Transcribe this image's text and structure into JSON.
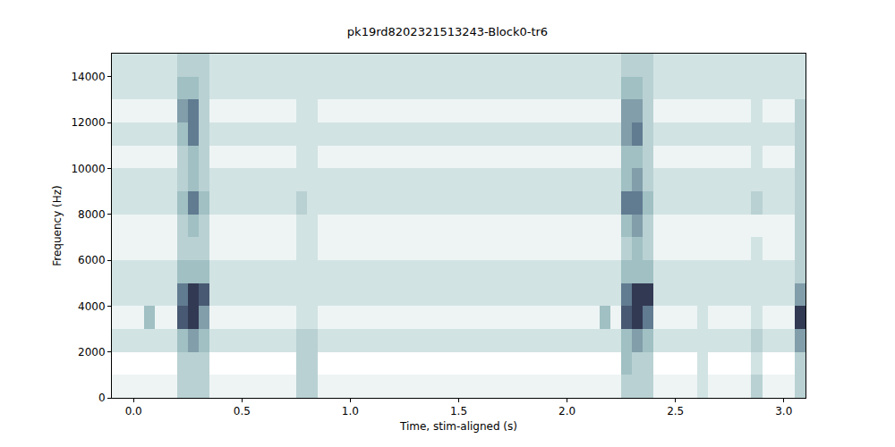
{
  "chart_data": {
    "type": "heatmap",
    "title": "pk19rd8202321513243-Block0-tr6",
    "x_label": "Time, stim-aligned (s)",
    "y_label": "Frequency (Hz)",
    "xlim": [
      -0.1,
      3.1
    ],
    "ylim": [
      0,
      15000
    ],
    "xticks": [
      {
        "value": 0,
        "label": "0.0"
      },
      {
        "value": 0.5,
        "label": "0.5"
      },
      {
        "value": 1,
        "label": "1.0"
      },
      {
        "value": 1.5,
        "label": "1.5"
      },
      {
        "value": 2,
        "label": "2.0"
      },
      {
        "value": 2.5,
        "label": "2.5"
      },
      {
        "value": 3,
        "label": "3.0"
      }
    ],
    "yticks": [
      0,
      2000,
      4000,
      6000,
      8000,
      10000,
      12000,
      14000
    ],
    "grid": false,
    "zlim": [
      0,
      9
    ],
    "x": [
      -0.075,
      -0.025,
      0.025,
      0.075,
      0.125,
      0.175,
      0.225,
      0.275,
      0.325,
      0.375,
      0.425,
      0.475,
      0.525,
      0.575,
      0.625,
      0.675,
      0.725,
      0.775,
      0.825,
      0.875,
      0.925,
      0.975,
      1.025,
      1.075,
      1.125,
      1.175,
      1.225,
      1.275,
      1.325,
      1.375,
      1.425,
      1.475,
      1.525,
      1.575,
      1.625,
      1.675,
      1.725,
      1.775,
      1.825,
      1.875,
      1.925,
      1.975,
      2.025,
      2.075,
      2.125,
      2.175,
      2.225,
      2.275,
      2.325,
      2.375,
      2.425,
      2.475,
      2.525,
      2.575,
      2.625,
      2.675,
      2.725,
      2.775,
      2.825,
      2.875,
      2.925,
      2.975,
      3.025,
      3.075
    ],
    "y": [
      500,
      1500,
      2500,
      3500,
      4500,
      5500,
      6500,
      7500,
      8500,
      9500,
      10500,
      11500,
      12500,
      13500,
      14500
    ],
    "z": [
      [
        1,
        1,
        1,
        1,
        1,
        1,
        3,
        3,
        3,
        1,
        1,
        1,
        1,
        1,
        1,
        1,
        1,
        3,
        3,
        1,
        1,
        1,
        1,
        1,
        1,
        1,
        1,
        1,
        1,
        1,
        1,
        1,
        1,
        1,
        1,
        1,
        1,
        1,
        1,
        1,
        1,
        1,
        1,
        1,
        1,
        1,
        1,
        3,
        3,
        3,
        1,
        1,
        1,
        1,
        2,
        1,
        1,
        1,
        1,
        3,
        1,
        1,
        1,
        3
      ],
      [
        0,
        0,
        0,
        0,
        0,
        0,
        3,
        3,
        3,
        0,
        0,
        0,
        0,
        0,
        0,
        0,
        0,
        3,
        3,
        0,
        0,
        0,
        0,
        0,
        0,
        0,
        0,
        0,
        0,
        0,
        0,
        0,
        0,
        0,
        0,
        0,
        0,
        0,
        0,
        0,
        0,
        0,
        0,
        0,
        0,
        0,
        0,
        4,
        3,
        3,
        0,
        0,
        0,
        0,
        2,
        0,
        0,
        0,
        0,
        2,
        0,
        0,
        0,
        3
      ],
      [
        2,
        2,
        2,
        2,
        2,
        2,
        4,
        5,
        4,
        2,
        2,
        2,
        2,
        2,
        2,
        2,
        2,
        3,
        3,
        2,
        2,
        2,
        2,
        2,
        2,
        2,
        2,
        2,
        2,
        2,
        2,
        2,
        2,
        2,
        2,
        2,
        2,
        2,
        2,
        2,
        2,
        2,
        2,
        2,
        2,
        2,
        2,
        4,
        5,
        4,
        2,
        2,
        2,
        2,
        2,
        2,
        2,
        2,
        2,
        3,
        2,
        2,
        2,
        5
      ],
      [
        1,
        1,
        1,
        4,
        1,
        1,
        7,
        8,
        5,
        1,
        1,
        1,
        1,
        1,
        1,
        1,
        1,
        2,
        2,
        1,
        1,
        1,
        1,
        1,
        1,
        1,
        1,
        1,
        1,
        1,
        1,
        1,
        1,
        1,
        1,
        1,
        1,
        1,
        1,
        1,
        1,
        1,
        1,
        1,
        1,
        4,
        1,
        7,
        8,
        6,
        1,
        1,
        1,
        1,
        2,
        1,
        1,
        1,
        1,
        2,
        1,
        1,
        1,
        8
      ],
      [
        2,
        2,
        2,
        2,
        2,
        2,
        6,
        8,
        7,
        2,
        2,
        2,
        2,
        2,
        2,
        2,
        2,
        2,
        2,
        2,
        2,
        2,
        2,
        2,
        2,
        2,
        2,
        2,
        2,
        2,
        2,
        2,
        2,
        2,
        2,
        2,
        2,
        2,
        2,
        2,
        2,
        2,
        2,
        2,
        2,
        2,
        2,
        6,
        8,
        8,
        2,
        2,
        2,
        2,
        2,
        2,
        2,
        2,
        2,
        2,
        2,
        2,
        2,
        5
      ],
      [
        2,
        2,
        2,
        2,
        2,
        2,
        4,
        4,
        4,
        2,
        2,
        2,
        2,
        2,
        2,
        2,
        2,
        2,
        2,
        2,
        2,
        2,
        2,
        2,
        2,
        2,
        2,
        2,
        2,
        2,
        2,
        2,
        2,
        2,
        2,
        2,
        2,
        2,
        2,
        2,
        2,
        2,
        2,
        2,
        2,
        2,
        2,
        4,
        4,
        4,
        2,
        2,
        2,
        2,
        2,
        2,
        2,
        2,
        2,
        2,
        2,
        2,
        2,
        3
      ],
      [
        1,
        1,
        1,
        1,
        1,
        1,
        3,
        3,
        3,
        1,
        1,
        1,
        1,
        1,
        1,
        1,
        1,
        2,
        2,
        1,
        1,
        1,
        1,
        1,
        1,
        1,
        1,
        1,
        1,
        1,
        1,
        1,
        1,
        1,
        1,
        1,
        1,
        1,
        1,
        1,
        1,
        1,
        1,
        1,
        1,
        1,
        1,
        3,
        4,
        3,
        1,
        1,
        1,
        1,
        1,
        1,
        1,
        1,
        1,
        2,
        1,
        1,
        1,
        3
      ],
      [
        1,
        1,
        1,
        1,
        1,
        1,
        3,
        4,
        3,
        1,
        1,
        1,
        1,
        1,
        1,
        1,
        1,
        2,
        2,
        1,
        1,
        1,
        1,
        1,
        1,
        1,
        1,
        1,
        1,
        1,
        1,
        1,
        1,
        1,
        1,
        1,
        1,
        1,
        1,
        1,
        1,
        1,
        1,
        1,
        1,
        1,
        1,
        4,
        5,
        3,
        1,
        1,
        1,
        1,
        1,
        1,
        1,
        1,
        1,
        1,
        1,
        1,
        1,
        3
      ],
      [
        2,
        2,
        2,
        2,
        2,
        2,
        4,
        6,
        4,
        2,
        2,
        2,
        2,
        2,
        2,
        2,
        2,
        3,
        2,
        2,
        2,
        2,
        2,
        2,
        2,
        2,
        2,
        2,
        2,
        2,
        2,
        2,
        2,
        2,
        2,
        2,
        2,
        2,
        2,
        2,
        2,
        2,
        2,
        2,
        2,
        2,
        2,
        6,
        6,
        4,
        2,
        2,
        2,
        2,
        2,
        2,
        2,
        2,
        2,
        3,
        2,
        2,
        2,
        3
      ],
      [
        2,
        2,
        2,
        2,
        2,
        2,
        3,
        4,
        3,
        2,
        2,
        2,
        2,
        2,
        2,
        2,
        2,
        2,
        2,
        2,
        2,
        2,
        2,
        2,
        2,
        2,
        2,
        2,
        2,
        2,
        2,
        2,
        2,
        2,
        2,
        2,
        2,
        2,
        2,
        2,
        2,
        2,
        2,
        2,
        2,
        2,
        2,
        4,
        5,
        3,
        2,
        2,
        2,
        2,
        2,
        2,
        2,
        2,
        2,
        2,
        2,
        2,
        2,
        3
      ],
      [
        1,
        1,
        1,
        1,
        1,
        1,
        3,
        4,
        3,
        1,
        1,
        1,
        1,
        1,
        1,
        1,
        1,
        2,
        2,
        1,
        1,
        1,
        1,
        1,
        1,
        1,
        1,
        1,
        1,
        1,
        1,
        1,
        1,
        1,
        1,
        1,
        1,
        1,
        1,
        1,
        1,
        1,
        1,
        1,
        1,
        1,
        1,
        4,
        4,
        3,
        1,
        1,
        1,
        1,
        1,
        1,
        1,
        1,
        1,
        2,
        1,
        1,
        1,
        3
      ],
      [
        2,
        2,
        2,
        2,
        2,
        2,
        4,
        6,
        3,
        2,
        2,
        2,
        2,
        2,
        2,
        2,
        2,
        2,
        2,
        2,
        2,
        2,
        2,
        2,
        2,
        2,
        2,
        2,
        2,
        2,
        2,
        2,
        2,
        2,
        2,
        2,
        2,
        2,
        2,
        2,
        2,
        2,
        2,
        2,
        2,
        2,
        2,
        5,
        6,
        3,
        2,
        2,
        2,
        2,
        2,
        2,
        2,
        2,
        2,
        2,
        2,
        2,
        2,
        3
      ],
      [
        1,
        1,
        1,
        1,
        1,
        1,
        5,
        6,
        3,
        1,
        1,
        1,
        1,
        1,
        1,
        1,
        1,
        2,
        2,
        1,
        1,
        1,
        1,
        1,
        1,
        1,
        1,
        1,
        1,
        1,
        1,
        1,
        1,
        1,
        1,
        1,
        1,
        1,
        1,
        1,
        1,
        1,
        1,
        1,
        1,
        1,
        1,
        5,
        5,
        3,
        1,
        1,
        1,
        1,
        1,
        1,
        1,
        1,
        1,
        2,
        1,
        1,
        1,
        3
      ],
      [
        2,
        2,
        2,
        2,
        2,
        2,
        4,
        4,
        3,
        2,
        2,
        2,
        2,
        2,
        2,
        2,
        2,
        2,
        2,
        2,
        2,
        2,
        2,
        2,
        2,
        2,
        2,
        2,
        2,
        2,
        2,
        2,
        2,
        2,
        2,
        2,
        2,
        2,
        2,
        2,
        2,
        2,
        2,
        2,
        2,
        2,
        2,
        4,
        4,
        3,
        2,
        2,
        2,
        2,
        2,
        2,
        2,
        2,
        2,
        2,
        2,
        2,
        2,
        2
      ],
      [
        2,
        2,
        2,
        2,
        2,
        2,
        3,
        3,
        3,
        2,
        2,
        2,
        2,
        2,
        2,
        2,
        2,
        2,
        2,
        2,
        2,
        2,
        2,
        2,
        2,
        2,
        2,
        2,
        2,
        2,
        2,
        2,
        2,
        2,
        2,
        2,
        2,
        2,
        2,
        2,
        2,
        2,
        2,
        2,
        2,
        2,
        2,
        3,
        3,
        3,
        2,
        2,
        2,
        2,
        2,
        2,
        2,
        2,
        2,
        2,
        2,
        2,
        2,
        2
      ]
    ]
  }
}
